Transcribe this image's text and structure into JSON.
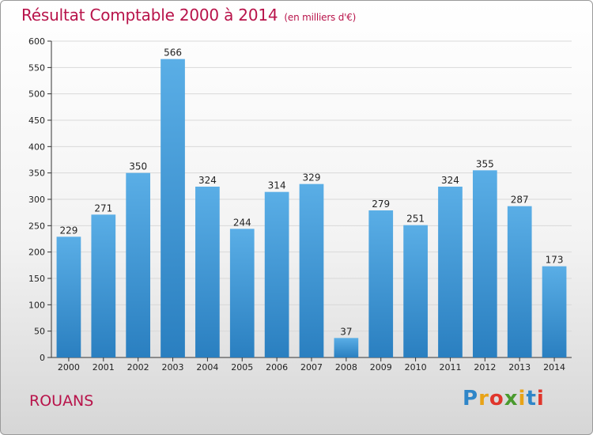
{
  "header": {
    "title": "Résultat Comptable 2000 à 2014",
    "subtitle": "(en milliers d'€)"
  },
  "footer": {
    "town": "ROUANS",
    "logo_letters": [
      "P",
      "r",
      "o",
      "x",
      "i",
      "t",
      "i"
    ],
    "logo_colors": [
      "#2f86c8",
      "#e8a317",
      "#e0362c",
      "#4a9a2e",
      "#e8a317",
      "#2f86c8",
      "#e0362c"
    ]
  },
  "colors": {
    "title": "#b8134a",
    "bar_light": "#5aaee6",
    "bar_dark": "#2a7fc0",
    "grid": "#d9d9d9",
    "axis": "#333333"
  },
  "chart_data": {
    "type": "bar",
    "title": "Résultat Comptable 2000 à 2014",
    "categories": [
      "2000",
      "2001",
      "2002",
      "2003",
      "2004",
      "2005",
      "2006",
      "2007",
      "2008",
      "2009",
      "2010",
      "2011",
      "2012",
      "2013",
      "2014"
    ],
    "values": [
      229,
      271,
      350,
      566,
      324,
      244,
      314,
      329,
      37,
      279,
      251,
      324,
      355,
      287,
      173
    ],
    "ylim": [
      0,
      600
    ],
    "yticks": [
      0,
      50,
      100,
      150,
      200,
      250,
      300,
      350,
      400,
      450,
      500,
      550,
      600
    ],
    "grid": true,
    "legend": "none"
  }
}
